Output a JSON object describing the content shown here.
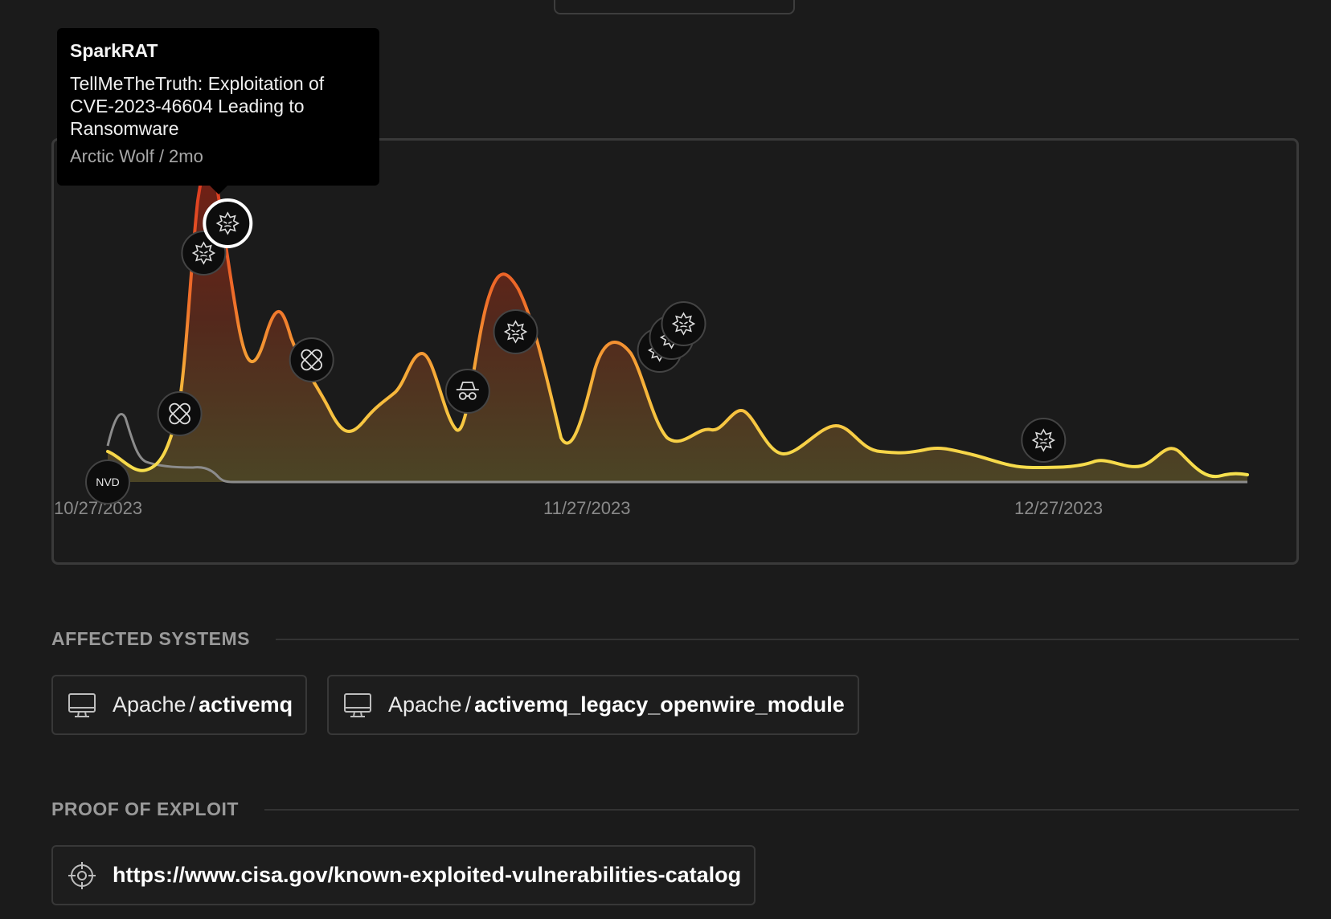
{
  "timeline": {
    "x_axis_labels": [
      "10/27/2023",
      "11/27/2023",
      "12/27/2023"
    ],
    "tooltip": {
      "title": "SparkRAT",
      "body": "TellMeTheTruth: Exploitation of CVE-2023-46604 Leading to Ransomware",
      "meta": "Arctic Wolf / 2mo"
    },
    "markers": [
      {
        "type": "nvd",
        "label": "NVD",
        "icon": "nvd-icon",
        "date_index": 0,
        "selected": false
      },
      {
        "type": "patch",
        "icon": "bandage-icon",
        "date_index": 6,
        "selected": false
      },
      {
        "type": "malware",
        "icon": "virus-icon",
        "date_index": 8,
        "selected": false
      },
      {
        "type": "malware",
        "icon": "virus-icon",
        "date_index": 10,
        "selected": true
      },
      {
        "type": "patch",
        "icon": "bandage-icon",
        "date_index": 17,
        "selected": false
      },
      {
        "type": "threat-actor",
        "icon": "spy-icon",
        "date_index": 30,
        "selected": false
      },
      {
        "type": "malware",
        "icon": "virus-icon",
        "date_index": 34,
        "selected": false
      },
      {
        "type": "malware",
        "icon": "virus-icon",
        "date_index": 46,
        "selected": false
      },
      {
        "type": "malware",
        "icon": "virus-icon",
        "date_index": 47,
        "selected": false
      },
      {
        "type": "malware",
        "icon": "virus-icon",
        "date_index": 48,
        "selected": false
      },
      {
        "type": "malware",
        "icon": "virus-icon",
        "date_index": 78,
        "selected": false
      }
    ],
    "colors": {
      "hot": "#e8482a",
      "warm": "#f2a431",
      "cool": "#f5dc4a",
      "secondary_line": "#8c8c8c"
    }
  },
  "affected_systems": {
    "heading": "AFFECTED SYSTEMS",
    "items": [
      {
        "vendor": "Apache",
        "separator": "/",
        "product": "activemq",
        "icon": "monitor-icon"
      },
      {
        "vendor": "Apache",
        "separator": "/",
        "product": "activemq_legacy_openwire_module",
        "icon": "monitor-icon"
      }
    ]
  },
  "proof_of_exploit": {
    "heading": "PROOF OF EXPLOIT",
    "items": [
      {
        "url": "https://www.cisa.gov/known-exploited-vulnerabilities-catalog",
        "icon": "crosshair-icon"
      }
    ]
  }
}
